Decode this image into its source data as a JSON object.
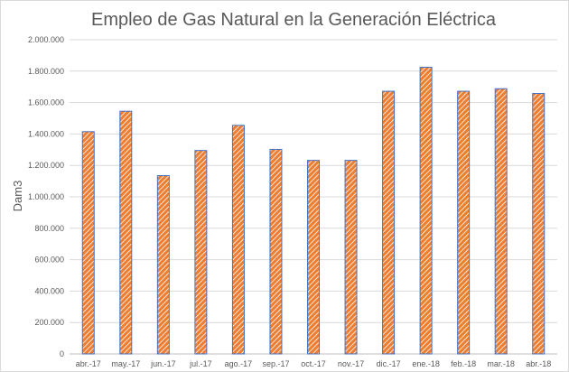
{
  "chart_data": {
    "type": "bar",
    "title": "Empleo de Gas Natural en la Generación Eléctrica",
    "xlabel": "",
    "ylabel": "Dam3",
    "ylim": [
      0,
      2000000
    ],
    "yticks": [
      "0",
      "200.000",
      "400.000",
      "600.000",
      "800.000",
      "1.000.000",
      "1.200.000",
      "1.400.000",
      "1.600.000",
      "1.800.000",
      "2.000.000"
    ],
    "categories": [
      "abr.-17",
      "may.-17",
      "jun.-17",
      "jul.-17",
      "ago.-17",
      "sep.-17",
      "oct.-17",
      "nov.-17",
      "dic.-17",
      "ene.-18",
      "feb.-18",
      "mar.-18",
      "abr.-18"
    ],
    "values": [
      1415000,
      1545000,
      1135000,
      1295000,
      1455000,
      1302000,
      1232000,
      1232000,
      1672000,
      1825000,
      1672000,
      1688000,
      1658000
    ],
    "grid": true,
    "legend": "none",
    "colors": {
      "bar_fill": "#ed7d31",
      "bar_hatch": "#4472c4"
    }
  }
}
